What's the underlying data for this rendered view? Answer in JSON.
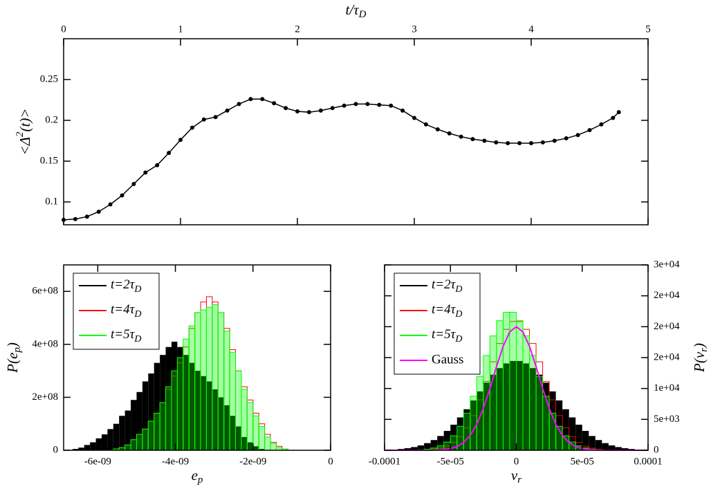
{
  "chart_data": [
    {
      "type": "line",
      "xlabel": {
        "text": "t/τ",
        "sub": "D"
      },
      "ylabel": {
        "text": "<Δ",
        "sup": "2",
        "after": "(t)>"
      },
      "xaxis_side": "top",
      "yaxis_side": "left",
      "markers": true,
      "x": [
        0,
        0.1,
        0.2,
        0.3,
        0.4,
        0.5,
        0.6,
        0.7,
        0.8,
        0.9,
        1.0,
        1.1,
        1.2,
        1.3,
        1.4,
        1.5,
        1.6,
        1.7,
        1.8,
        1.9,
        2.0,
        2.1,
        2.2,
        2.3,
        2.4,
        2.5,
        2.6,
        2.7,
        2.8,
        2.9,
        3.0,
        3.1,
        3.2,
        3.3,
        3.4,
        3.5,
        3.6,
        3.7,
        3.8,
        3.9,
        4.0,
        4.1,
        4.2,
        4.3,
        4.4,
        4.5,
        4.6,
        4.7,
        4.75
      ],
      "series": [
        {
          "color": "#000000",
          "values": [
            0.078,
            0.079,
            0.082,
            0.088,
            0.097,
            0.108,
            0.122,
            0.136,
            0.145,
            0.16,
            0.176,
            0.191,
            0.201,
            0.204,
            0.212,
            0.22,
            0.226,
            0.226,
            0.221,
            0.215,
            0.211,
            0.21,
            0.212,
            0.215,
            0.218,
            0.22,
            0.22,
            0.219,
            0.218,
            0.212,
            0.203,
            0.195,
            0.189,
            0.184,
            0.18,
            0.177,
            0.175,
            0.173,
            0.172,
            0.172,
            0.172,
            0.173,
            0.175,
            0.178,
            0.182,
            0.188,
            0.195,
            0.203,
            0.21
          ]
        }
      ],
      "xlim": [
        0,
        5
      ],
      "xticks": [
        0,
        1,
        2,
        3,
        4,
        5
      ],
      "ylim": [
        0.072,
        0.3
      ],
      "yticks": [
        0.1,
        0.15,
        0.2,
        0.25
      ]
    },
    {
      "type": "histogram",
      "xlabel": {
        "text": "e",
        "sub": "p"
      },
      "ylabel": {
        "text": "P(e",
        "sub": "p",
        "after": ")"
      },
      "xaxis_side": "bottom",
      "yaxis_side": "left",
      "legend": "upper left",
      "bins": [
        -6.8e-09,
        -6.65e-09,
        -6.5e-09,
        -6.35e-09,
        -6.2e-09,
        -6.05e-09,
        -5.9e-09,
        -5.75e-09,
        -5.6e-09,
        -5.45e-09,
        -5.3e-09,
        -5.15e-09,
        -5e-09,
        -4.85e-09,
        -4.7e-09,
        -4.55e-09,
        -4.4e-09,
        -4.25e-09,
        -4.1e-09,
        -3.95e-09,
        -3.8e-09,
        -3.65e-09,
        -3.5e-09,
        -3.35e-09,
        -3.2e-09,
        -3.05e-09,
        -2.9e-09,
        -2.75e-09,
        -2.6e-09,
        -2.45e-09,
        -2.3e-09,
        -2.15e-09,
        -2e-09,
        -1.85e-09,
        -1.7e-09,
        -1.55e-09,
        -1.4e-09,
        -1.25e-09,
        -1.1e-09,
        -9.5e-10,
        -8e-10
      ],
      "series": [
        {
          "name": "t=2τD",
          "color": "#000000",
          "style": "filled",
          "values": [
            0,
            5000000.0,
            10000000.0,
            20000000.0,
            30000000.0,
            45000000.0,
            60000000.0,
            80000000.0,
            100000000.0,
            130000000.0,
            150000000.0,
            190000000.0,
            220000000.0,
            260000000.0,
            290000000.0,
            330000000.0,
            360000000.0,
            390000000.0,
            410000000.0,
            390000000.0,
            360000000.0,
            330000000.0,
            300000000.0,
            280000000.0,
            260000000.0,
            230000000.0,
            200000000.0,
            170000000.0,
            130000000.0,
            90000000.0,
            50000000.0,
            30000000.0,
            15000000.0,
            5000000.0,
            0,
            0,
            0,
            0,
            0,
            0
          ]
        },
        {
          "name": "t=4τD",
          "color": "#ff0000",
          "style": "outline",
          "values": [
            0,
            0,
            0,
            0,
            0,
            0,
            0,
            0,
            5000000.0,
            10000000.0,
            20000000.0,
            40000000.0,
            60000000.0,
            80000000.0,
            110000000.0,
            140000000.0,
            180000000.0,
            230000000.0,
            280000000.0,
            330000000.0,
            390000000.0,
            460000000.0,
            520000000.0,
            560000000.0,
            580000000.0,
            560000000.0,
            520000000.0,
            460000000.0,
            380000000.0,
            300000000.0,
            240000000.0,
            190000000.0,
            140000000.0,
            100000000.0,
            60000000.0,
            30000000.0,
            15000000.0,
            5000000.0,
            0,
            0
          ]
        },
        {
          "name": "t=5τD",
          "color": "#00ff00",
          "style": "outline",
          "fill": "#00ff00",
          "values": [
            0,
            0,
            0,
            0,
            0,
            0,
            0,
            0,
            5000000.0,
            10000000.0,
            20000000.0,
            40000000.0,
            60000000.0,
            80000000.0,
            110000000.0,
            140000000.0,
            180000000.0,
            240000000.0,
            300000000.0,
            350000000.0,
            420000000.0,
            470000000.0,
            520000000.0,
            530000000.0,
            540000000.0,
            550000000.0,
            520000000.0,
            450000000.0,
            370000000.0,
            300000000.0,
            230000000.0,
            180000000.0,
            130000000.0,
            90000000.0,
            50000000.0,
            25000000.0,
            10000000.0,
            5000000.0,
            0,
            0
          ]
        }
      ],
      "xlim": [
        -6.88e-09,
        0
      ],
      "xticks": [
        {
          "value": -6e-09,
          "label": "-6e-09"
        },
        {
          "value": -4e-09,
          "label": "-4e-09"
        },
        {
          "value": -2e-09,
          "label": "-2e-09"
        },
        0
      ],
      "ylim": [
        0,
        700000000.0
      ],
      "yticks": [
        0,
        {
          "value": 200000000.0,
          "label": "2e+08"
        },
        {
          "value": 400000000.0,
          "label": "4e+08"
        },
        {
          "value": 600000000.0,
          "label": "6e+08"
        }
      ]
    },
    {
      "type": "histogram",
      "xlabel": {
        "text": "v",
        "sub": "r"
      },
      "ylabel": {
        "text": "P(v",
        "sub": "r",
        "after": ")"
      },
      "xaxis_side": "bottom",
      "yaxis_side": "right",
      "legend": "upper left",
      "bins": [
        -9e-05,
        -8.5e-05,
        -8e-05,
        -7.5e-05,
        -7e-05,
        -6.5e-05,
        -6e-05,
        -5.5e-05,
        -5e-05,
        -4.5e-05,
        -4e-05,
        -3.5e-05,
        -3e-05,
        -2.5e-05,
        -2e-05,
        -1.5e-05,
        -1e-05,
        -5e-06,
        0,
        5e-06,
        1e-05,
        1.5e-05,
        2e-05,
        2.5e-05,
        3e-05,
        3.5e-05,
        4e-05,
        4.5e-05,
        5e-05,
        5.5e-05,
        6e-05,
        6.5e-05,
        7e-05,
        7.5e-05,
        8e-05,
        8.5e-05,
        9e-05
      ],
      "series": [
        {
          "name": "t=2τD",
          "color": "#000000",
          "style": "filled",
          "values": [
            207,
            331,
            515,
            783,
            1154,
            1654,
            2310,
            3137,
            4142,
            5318,
            6640,
            8065,
            9527,
            10948,
            12232,
            13295,
            14054,
            14450,
            14450,
            14054,
            13295,
            12232,
            10948,
            9527,
            8065,
            6640,
            5318,
            4142,
            3137,
            2310,
            1654,
            1154,
            783,
            515,
            331,
            207
          ]
        },
        {
          "name": "t=4τD",
          "color": "#ff0000",
          "style": "outline",
          "values": [
            1,
            4,
            12,
            30,
            70,
            160,
            338,
            670,
            1250,
            2195,
            3620,
            5610,
            8165,
            11150,
            14320,
            17280,
            19575,
            20840,
            20840,
            19575,
            17280,
            14320,
            11150,
            8165,
            5610,
            3620,
            2195,
            1250,
            670,
            338,
            160,
            70,
            30,
            12,
            4,
            1
          ]
        },
        {
          "name": "t=5τD",
          "color": "#00ff00",
          "style": "outline",
          "fill": "#00ff00",
          "values": [
            5,
            13,
            32,
            75,
            171,
            362,
            718,
            1340,
            2352,
            3879,
            6011,
            8748,
            11946,
            15343,
            18514,
            20973,
            22329,
            22329,
            20973,
            18514,
            15343,
            11946,
            8748,
            6011,
            3879,
            2352,
            1340,
            718,
            362,
            171,
            75,
            32,
            13,
            5,
            2,
            1
          ]
        },
        {
          "name": "Gauss",
          "color": "#ff00ff",
          "style": "line",
          "x": [
            -0.0001,
            -9.5e-05,
            -9e-05,
            -8.5e-05,
            -8e-05,
            -7.5e-05,
            -7e-05,
            -6.5e-05,
            -6e-05,
            -5.5e-05,
            -5e-05,
            -4.5e-05,
            -4e-05,
            -3.5e-05,
            -3e-05,
            -2.5e-05,
            -2e-05,
            -1.5e-05,
            -1e-05,
            -5e-06,
            0,
            5e-06,
            1e-05,
            1.5e-05,
            2e-05,
            2.5e-05,
            3e-05,
            3.5e-05,
            4e-05,
            4.5e-05,
            5e-05,
            5.5e-05,
            6e-05,
            6.5e-05,
            7e-05,
            7.5e-05,
            8e-05,
            8.5e-05,
            9e-05,
            9.5e-05,
            0.0001
          ],
          "values": [
            0,
            0,
            0,
            0,
            0,
            1,
            4,
            13,
            39,
            107,
            265,
            602,
            1256,
            2403,
            4217,
            6785,
            10011,
            13556,
            16825,
            19153,
            20000,
            19153,
            16825,
            13556,
            10011,
            6785,
            4217,
            2403,
            1256,
            602,
            265,
            107,
            39,
            13,
            4,
            1,
            0,
            0,
            0,
            0,
            0
          ]
        }
      ],
      "xlim": [
        -0.0001,
        0.0001
      ],
      "xticks": [
        -0.0001,
        {
          "value": -5e-05,
          "label": "-5e-05"
        },
        0,
        {
          "value": 5e-05,
          "label": "5e-05"
        },
        0.0001
      ],
      "ylim": [
        0,
        30000
      ],
      "yticks": [
        0,
        {
          "value": 5000,
          "label": "5e+03"
        },
        {
          "value": 10000,
          "label": "1e+04"
        },
        {
          "value": 15000,
          "label": "2e+04"
        },
        {
          "value": 20000,
          "label": "2e+04"
        },
        {
          "value": 25000,
          "label": "2e+04"
        },
        {
          "value": 30000,
          "label": "3e+04"
        }
      ]
    }
  ]
}
